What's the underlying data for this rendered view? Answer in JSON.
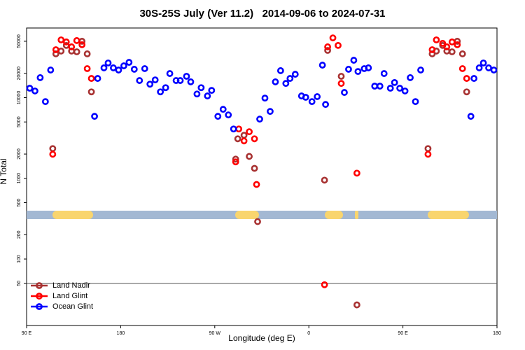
{
  "chart_data": {
    "type": "scatter",
    "title": "30S-25S July (Ver 11.2)   2014-09-06 to 2024-07-31",
    "x_label": "Longitude (deg E)",
    "y_label": "N Total",
    "xlim": [
      90,
      540
    ],
    "xticks": [
      {
        "value": 90,
        "label": "90 E"
      },
      180,
      {
        "value": 270,
        "label": "90 W"
      },
      {
        "value": 360,
        "label": "0"
      },
      {
        "value": 450,
        "label": "90 E"
      },
      {
        "value": 540,
        "label": "180"
      }
    ],
    "ylim": [
      15,
      73000
    ],
    "log_y": true,
    "yticks": [
      50000,
      20000,
      10000,
      5000,
      2000,
      1000,
      500,
      200,
      100,
      50
    ],
    "hline": 50,
    "legend": "lower left",
    "series": [
      {
        "name": "Land Nadir",
        "color": "#a83232",
        "x": [
          115,
          118,
          123,
          128,
          133,
          138,
          143,
          148,
          152,
          290,
          292,
          298,
          303,
          308,
          311,
          375,
          378,
          391,
          406,
          474,
          478,
          482,
          488,
          492,
          497,
          502,
          507,
          511
        ],
        "values": [
          2340,
          34900,
          37800,
          44400,
          37800,
          37000,
          50000,
          34900,
          11800,
          1730,
          3090,
          3420,
          1870,
          1330,
          291,
          950,
          38500,
          18400,
          27,
          2340,
          34900,
          37800,
          44400,
          37800,
          37000,
          50000,
          34900,
          11800
        ]
      },
      {
        "name": "Land Glint",
        "color": "#ff0000",
        "x": [
          115,
          118,
          123,
          128,
          133,
          138,
          143,
          148,
          152,
          290,
          293,
          298,
          303,
          308,
          310,
          375,
          378,
          383,
          388,
          391,
          406,
          474,
          478,
          482,
          488,
          492,
          497,
          502,
          507,
          511
        ],
        "values": [
          1990,
          39300,
          52000,
          49000,
          42600,
          51000,
          45300,
          22900,
          17300,
          1600,
          4090,
          2910,
          3780,
          3090,
          840,
          48,
          42600,
          55000,
          44400,
          15000,
          1160,
          1990,
          39300,
          52000,
          47100,
          42600,
          49000,
          45300,
          22900,
          17300
        ]
      },
      {
        "name": "Ocean Glint",
        "color": "#0000ff",
        "x": [
          93,
          98,
          103,
          108,
          113,
          155,
          158,
          164,
          168,
          173,
          178,
          183,
          188,
          193,
          198,
          203,
          208,
          213,
          218,
          223,
          227,
          233,
          237,
          243,
          247,
          253,
          257,
          263,
          267,
          273,
          278,
          283,
          288,
          313,
          318,
          323,
          328,
          333,
          338,
          342,
          347,
          353,
          357,
          363,
          368,
          376,
          373,
          394,
          398,
          403,
          407,
          413,
          417,
          423,
          428,
          432,
          438,
          442,
          447,
          452,
          457,
          462,
          467,
          515,
          518,
          523,
          527,
          532,
          537
        ],
        "values": [
          13100,
          12100,
          17700,
          8940,
          22000,
          5870,
          17300,
          23400,
          26900,
          23400,
          22000,
          24800,
          27400,
          22500,
          16300,
          22900,
          14700,
          16600,
          11800,
          13300,
          19900,
          16300,
          16300,
          18400,
          15700,
          11100,
          13300,
          10500,
          12300,
          5870,
          7170,
          6110,
          4090,
          5420,
          9880,
          6750,
          15700,
          21600,
          15000,
          17300,
          19500,
          10500,
          10100,
          8940,
          10300,
          8240,
          25300,
          11600,
          22500,
          29100,
          21100,
          22900,
          23400,
          13900,
          13900,
          19900,
          13100,
          15400,
          13100,
          12100,
          17700,
          8940,
          22000,
          5870,
          17300,
          23400,
          26900,
          23400,
          22000
        ]
      }
    ]
  }
}
